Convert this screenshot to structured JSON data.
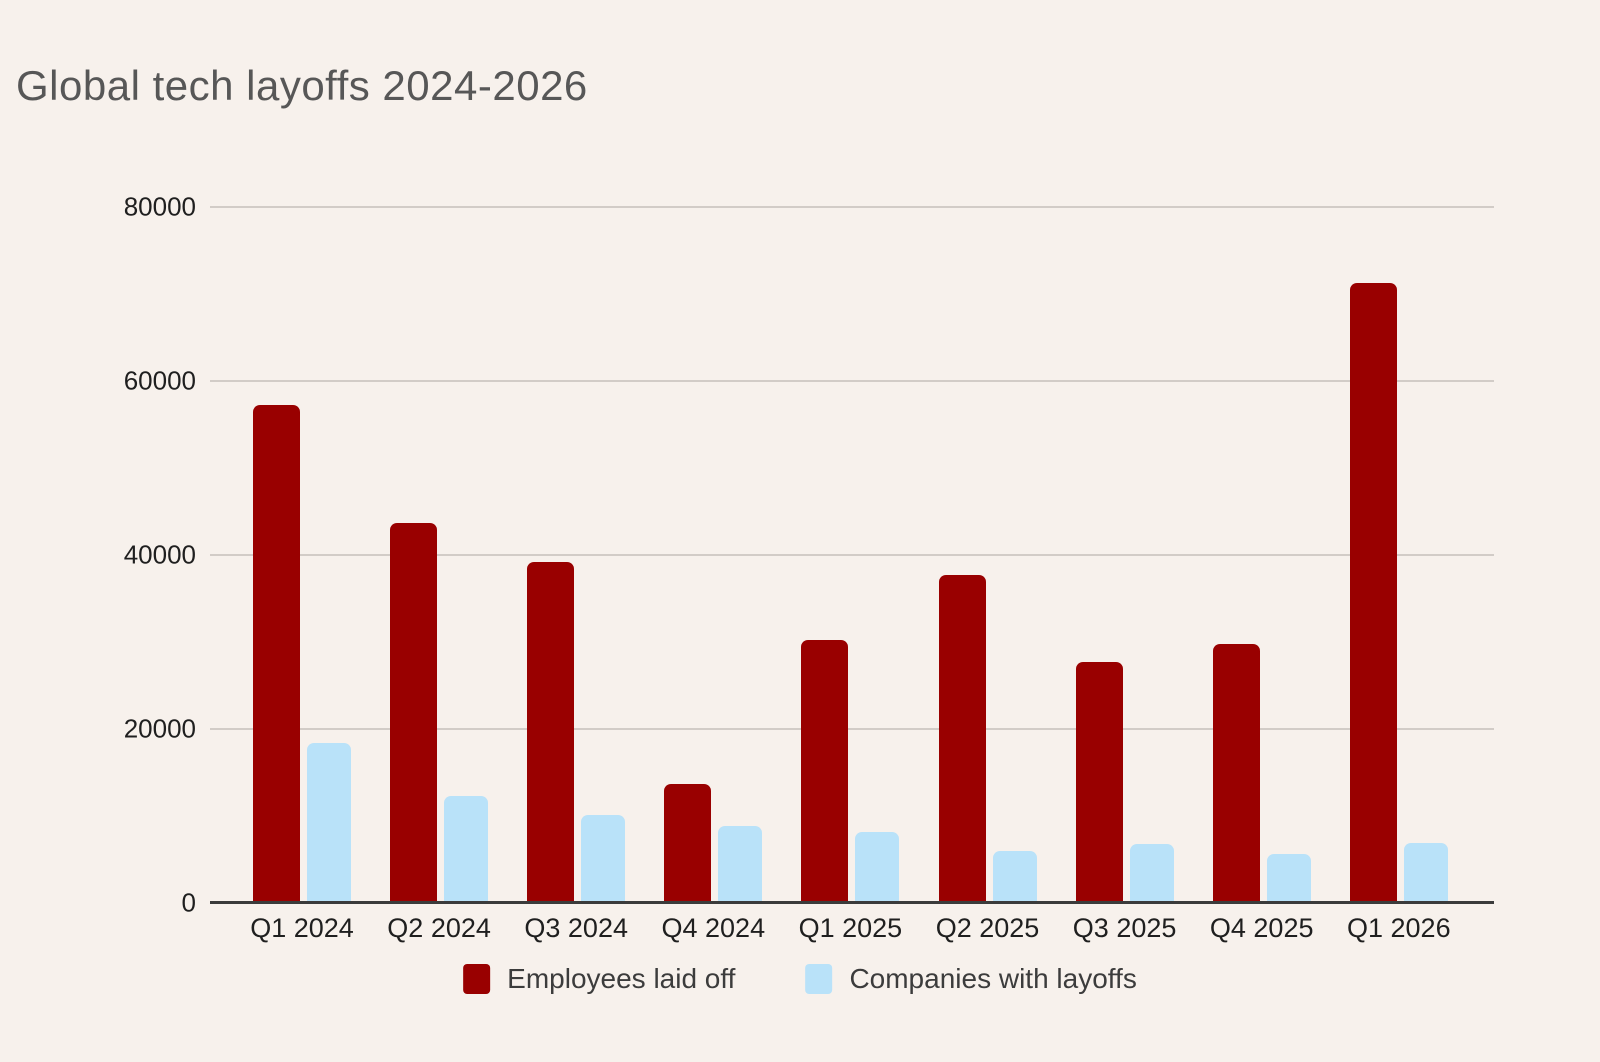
{
  "title": "Global tech layoffs 2024-2026",
  "colors": {
    "background": "#f7f1ec",
    "title_text": "#575757",
    "axis_text": "#1f1f1f",
    "gridline": "#d2ccc7",
    "axis_line": "#3b3b3b",
    "series_employees": "#990000",
    "series_companies": "#b9e2f9"
  },
  "chart_data": {
    "type": "bar",
    "title": "Global tech layoffs 2024-2026",
    "xlabel": "",
    "ylabel": "",
    "categories": [
      "Q1 2024",
      "Q2 2024",
      "Q3 2024",
      "Q4 2024",
      "Q1 2025",
      "Q2 2025",
      "Q3 2025",
      "Q4 2025",
      "Q1 2026"
    ],
    "series": [
      {
        "name": "Employees laid off",
        "color": "#990000",
        "values": [
          57000,
          43500,
          39000,
          13500,
          30000,
          37500,
          27500,
          29500,
          71000
        ]
      },
      {
        "name": "Companies with layoffs",
        "color": "#b9e2f9",
        "values": [
          18200,
          12100,
          9900,
          8600,
          7900,
          5700,
          6600,
          5400,
          6700
        ]
      }
    ],
    "ylim": [
      0,
      80000
    ],
    "yticks": [
      0,
      20000,
      40000,
      60000,
      80000
    ],
    "grid": true,
    "legend_position": "bottom"
  }
}
